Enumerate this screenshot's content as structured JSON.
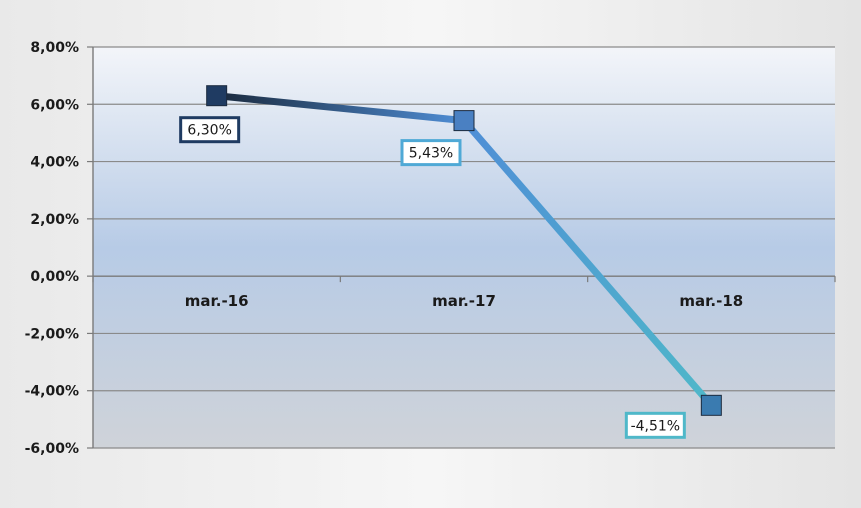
{
  "chart_data": {
    "type": "line",
    "title": "",
    "xlabel": "",
    "ylabel": "",
    "categories": [
      "mar.-16",
      "mar.-17",
      "mar.-18"
    ],
    "series": [
      {
        "values": [
          6.3,
          5.43,
          -4.51
        ]
      }
    ],
    "data_labels": [
      "6,30%",
      "5,43%",
      "-4,51%"
    ],
    "ylim": [
      -6,
      8
    ],
    "y_ticks": [
      8,
      6,
      4,
      2,
      0,
      -2,
      -4,
      -6
    ],
    "y_tick_labels": [
      "8,00%",
      "6,00%",
      "4,00%",
      "2,00%",
      "0,00%",
      "-2,00%",
      "-4,00%",
      "-6,00%"
    ],
    "grid": true,
    "legend": "none",
    "colors": {
      "line_start": "#1b2a3e",
      "line_mid": "#4f8ed6",
      "line_end": "#4fb8c9",
      "marker_1": "#1f3b62",
      "marker_2": "#4a80c2",
      "marker_3": "#3a7bb0",
      "label_border_1": "#1f3b62",
      "label_border_2": "#4fa9d6",
      "label_border_3": "#4fb8c9",
      "plot_top": "#f3f5f9",
      "plot_mid": "#b7cbe6",
      "plot_bottom": "#cfd3d9"
    }
  }
}
